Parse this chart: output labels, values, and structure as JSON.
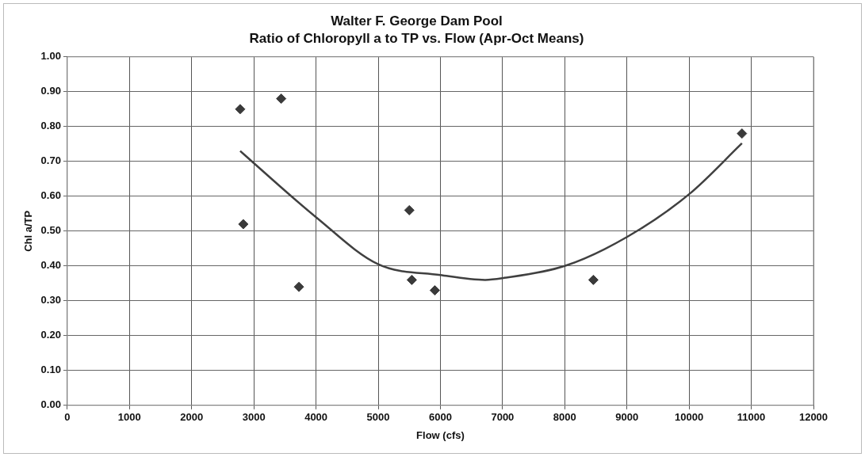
{
  "chart_data": {
    "type": "scatter",
    "title": "Walter F. George Dam Pool",
    "subtitle": "Ratio of Chloropyll a to TP vs. Flow (Apr-Oct Means)",
    "xlabel": "Flow (cfs)",
    "ylabel": "Chl a/TP",
    "series": [
      {
        "marker": "diamond",
        "color": "#3a3a3a",
        "x": [
          2780,
          3440,
          2830,
          3725,
          5500,
          5540,
          5910,
          8460,
          10850
        ],
        "values": [
          0.85,
          0.88,
          0.52,
          0.34,
          0.56,
          0.36,
          0.33,
          0.36,
          0.78
        ]
      },
      {
        "type": "line",
        "marker": "none",
        "color": "#404040",
        "x": [
          2780,
          3000,
          4000,
          5000,
          6000,
          6720,
          7000,
          8000,
          9000,
          10000,
          10850
        ],
        "values": [
          0.73,
          0.695,
          0.54,
          0.405,
          0.374,
          0.36,
          0.365,
          0.4,
          0.483,
          0.606,
          0.752
        ]
      }
    ],
    "xlim": [
      0,
      12000
    ],
    "ylim": [
      0,
      1
    ],
    "xticks": [
      0,
      1000,
      2000,
      3000,
      4000,
      5000,
      6000,
      7000,
      8000,
      9000,
      10000,
      11000,
      12000
    ],
    "yticks": [
      {
        "value": 0,
        "label": "0.00"
      },
      {
        "value": 0.1,
        "label": "0.10"
      },
      {
        "value": 0.2,
        "label": "0.20"
      },
      {
        "value": 0.3,
        "label": "0.30"
      },
      {
        "value": 0.4,
        "label": "0.40"
      },
      {
        "value": 0.5,
        "label": "0.50"
      },
      {
        "value": 0.6,
        "label": "0.60"
      },
      {
        "value": 0.7,
        "label": "0.70"
      },
      {
        "value": 0.8,
        "label": "0.80"
      },
      {
        "value": 0.9,
        "label": "0.90"
      },
      {
        "value": 1,
        "label": "1.00"
      }
    ],
    "grid": true
  }
}
